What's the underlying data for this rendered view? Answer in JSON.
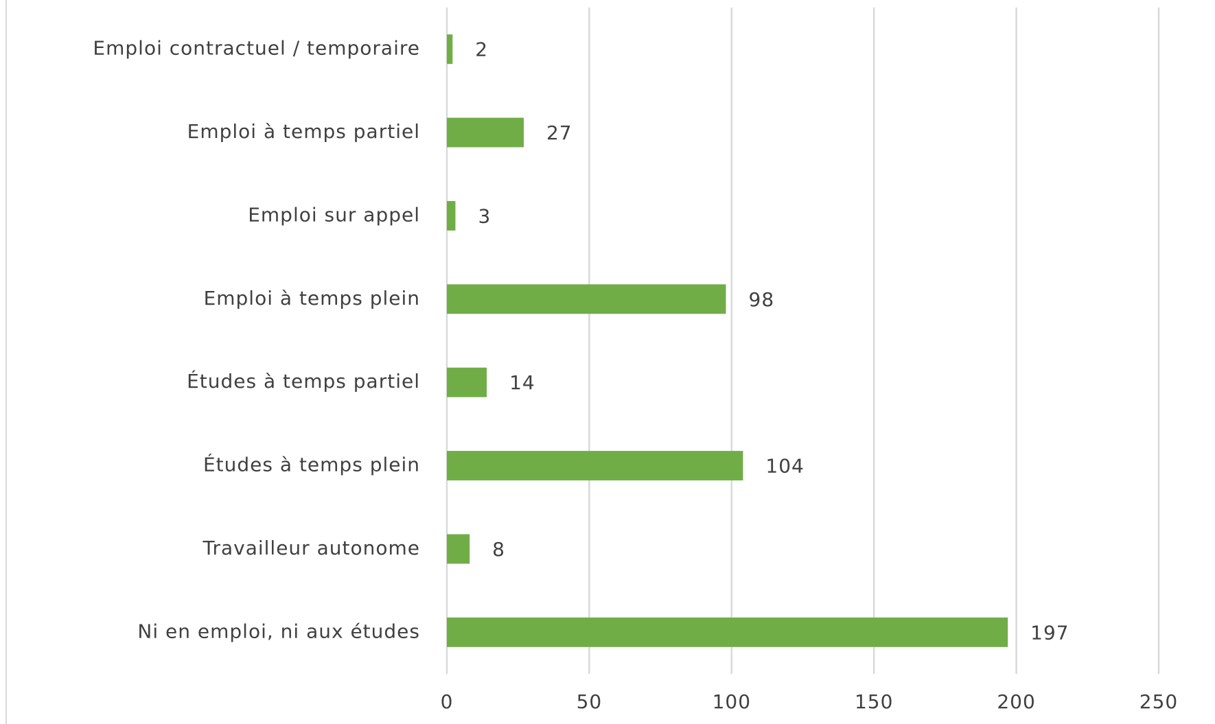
{
  "chart_data": {
    "type": "bar",
    "orientation": "horizontal",
    "categories": [
      "Emploi contractuel / temporaire",
      "Emploi à temps partiel",
      "Emploi sur appel",
      "Emploi à temps plein",
      "Études à temps partiel",
      "Études à temps plein",
      "Travailleur autonome",
      "Ni en emploi, ni aux études"
    ],
    "values": [
      2,
      27,
      3,
      98,
      14,
      104,
      8,
      197
    ],
    "color": "#70ad47",
    "xlim": [
      0,
      250
    ],
    "xticks": [
      0,
      50,
      100,
      150,
      200,
      250
    ],
    "grid": true
  }
}
